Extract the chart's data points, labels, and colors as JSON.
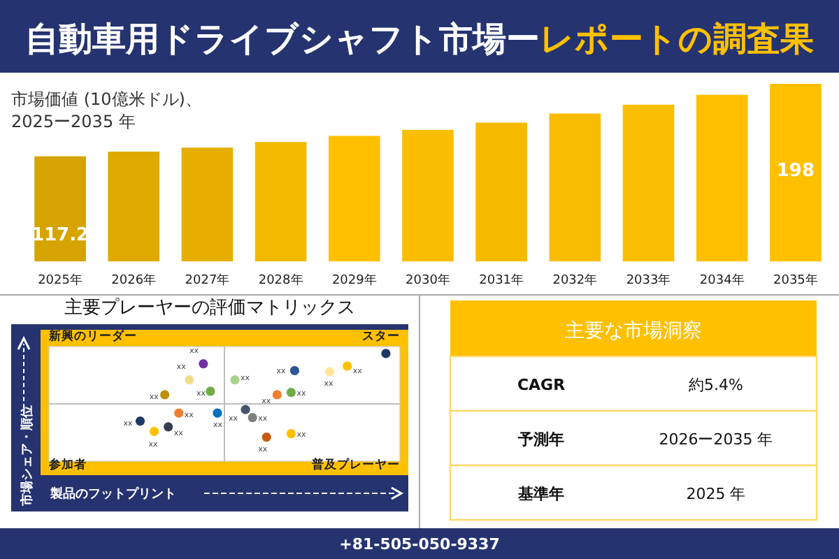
{
  "chart_data": [
    {
      "type": "bar",
      "title": "自動車用ドライブシャフト市場ー",
      "subtitle": "レポートの調査果",
      "ylabel": "市場価値 (10億米ドル)、\n2025ー2035 年",
      "categories": [
        "2025年",
        "2026年",
        "2027年",
        "2028年",
        "2029年",
        "2030年",
        "2031年",
        "2032年",
        "2033年",
        "2034年",
        "2035年"
      ],
      "values": [
        117.2,
        122.4,
        126.9,
        133.1,
        139.9,
        146.7,
        154.7,
        164.9,
        174.8,
        185.8,
        198
      ],
      "value_labels": [
        "117.2",
        null,
        null,
        null,
        null,
        null,
        null,
        null,
        null,
        null,
        "198"
      ],
      "colors": [
        "#d6a400",
        "#dfa900",
        "#e6ae00",
        "#f2b800",
        "#ffc000",
        "#fbbd00",
        "#f7ba00",
        "#f9bc00",
        "#fbbe00",
        "#fdbf00",
        "#ffc000"
      ],
      "tick_labels": "x",
      "annotations": [
        "+81-505-050-9337"
      ]
    },
    {
      "type": "other",
      "title": "主要プレーヤーの評価マトリックス",
      "xlabel": "製品のフットプリント",
      "ylabel": "市場シェア・順位",
      "annotations": [
        "新興のリーダー",
        "スター",
        "参加者",
        "普及プレーヤー",
        "xx",
        "xx",
        "xx",
        "xx",
        "xx",
        "xx",
        "xx",
        "xx",
        "xx",
        "xx",
        "xx",
        "xx",
        "xx",
        "xx",
        "xx",
        "xx",
        "xx",
        "xx",
        "xx"
      ]
    },
    {
      "type": "other",
      "title": "主要な市場洞察",
      "annotations": [
        "CAGR",
        "約5.4%",
        "予測年",
        "2026ー2035 年",
        "基準年",
        "2025 年"
      ]
    }
  ]
}
